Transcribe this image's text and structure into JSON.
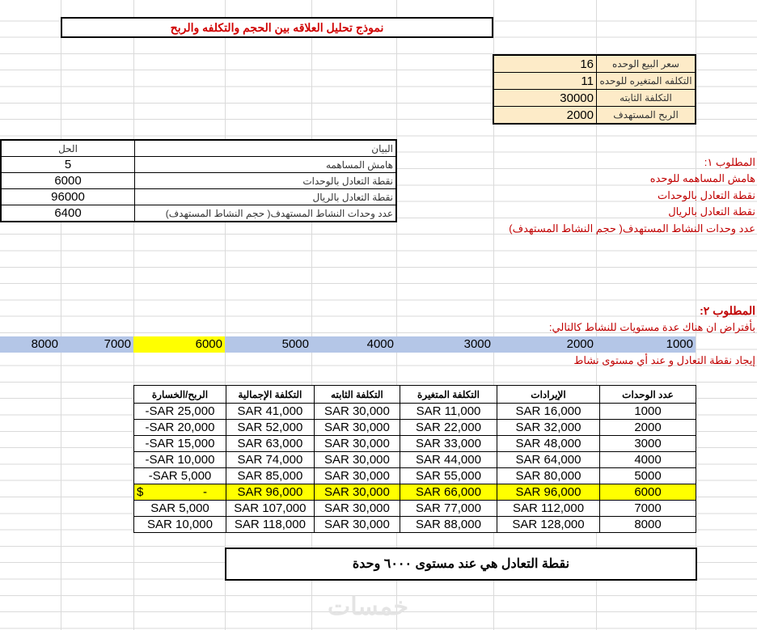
{
  "title": "نموذج تحليل العلاقه بين الحجم والتكلفه والربح",
  "inputs": [
    {
      "label": "سعر البيع الوحده",
      "value": "16"
    },
    {
      "label": "التكلفه المتغيره للوحده",
      "value": "11"
    },
    {
      "label": "التكلفة الثابته",
      "value": "30000"
    },
    {
      "label": "الربح المستهدف",
      "value": "2000"
    }
  ],
  "solution": {
    "headers": {
      "item": "البيان",
      "answer": "الحل"
    },
    "rows": [
      {
        "item": "هامش المساهمه",
        "answer": "5"
      },
      {
        "item": "نقطة التعادل بالوحدات",
        "answer": "6000"
      },
      {
        "item": "نقطة التعادل بالريال",
        "answer": "96000"
      },
      {
        "item": "عدد وحدات النشاط المستهدف( حجم النشاط المستهدف)",
        "answer": "6400"
      }
    ]
  },
  "req1": {
    "heading": "المطلوب ١:",
    "lines": [
      "هامش المساهمه للوحده",
      "نقطة التعادل بالوحدات",
      "نقطة التعادل بالريال",
      "عدد وحدات النشاط المستهدف( حجم النشاط المستهدف)"
    ]
  },
  "req2": {
    "heading": "المطلوب ٢:",
    "assume": "بأفتراض ان هناك عدة مستويات للنشاط كالتالي:",
    "levels": [
      "1000",
      "2000",
      "3000",
      "4000",
      "5000",
      "6000",
      "7000",
      "8000"
    ],
    "task": "إيجاد نقطة التعادل و عند أي مستوى نشاط"
  },
  "breakeven": {
    "headers": [
      "عدد الوحدات",
      "الإيرادات",
      "التكلفة المتغيرة",
      "التكلفة الثابته",
      "التكلفة الإجمالية",
      "الربح/الخسارة"
    ],
    "rows": [
      [
        "1000",
        "SAR 16,000",
        "SAR 11,000",
        "SAR 30,000",
        "SAR 41,000",
        "-SAR 25,000"
      ],
      [
        "2000",
        "SAR 32,000",
        "SAR 22,000",
        "SAR 30,000",
        "SAR 52,000",
        "-SAR 20,000"
      ],
      [
        "3000",
        "SAR 48,000",
        "SAR 33,000",
        "SAR 30,000",
        "SAR 63,000",
        "-SAR 15,000"
      ],
      [
        "4000",
        "SAR 64,000",
        "SAR 44,000",
        "SAR 30,000",
        "SAR 74,000",
        "-SAR 10,000"
      ],
      [
        "5000",
        "SAR 80,000",
        "SAR 55,000",
        "SAR 30,000",
        "SAR 85,000",
        "-SAR 5,000"
      ],
      [
        "6000",
        "SAR 96,000",
        "SAR 66,000",
        "SAR 30,000",
        "SAR 96,000",
        "$ -"
      ],
      [
        "7000",
        "SAR 112,000",
        "SAR 77,000",
        "SAR 30,000",
        "SAR 107,000",
        "SAR 5,000"
      ],
      [
        "8000",
        "SAR 128,000",
        "SAR 88,000",
        "SAR 30,000",
        "SAR 118,000",
        "SAR 10,000"
      ]
    ],
    "highlight_row": "6000"
  },
  "conclusion": "نقطة التعادل هي عند مستوى ٦٠٠٠ وحدة",
  "watermark": "خمسات",
  "colors": {
    "input_bg": "#fdebc8",
    "level_row_bg": "#b4c6e7",
    "highlight": "#ffff00",
    "red_text": "#c00000"
  }
}
